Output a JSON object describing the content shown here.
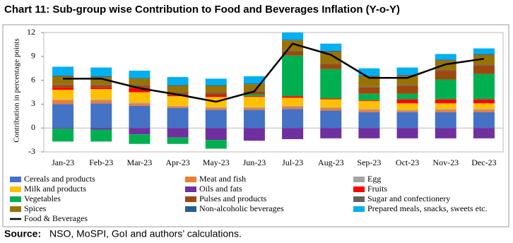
{
  "chart_data": {
    "type": "stacked-bar-line",
    "title": "Chart 11: Sub-group wise Contribution to Food and Beverages Inflation (Y-o-Y)",
    "y_label": "Contribution in percentage points",
    "categories": [
      "Jan-23",
      "Feb-23",
      "Mar-23",
      "Apr-23",
      "May-23",
      "Jun-23",
      "Jul-23",
      "Aug-23",
      "Sep-23",
      "Oct-23",
      "Nov-23",
      "Dec-23"
    ],
    "ylim": [
      -3,
      12
    ],
    "yticks": [
      -3,
      0,
      3,
      6,
      9,
      12
    ],
    "grid": false,
    "series": [
      {
        "name": "Cereals and products",
        "color": "#4472c4",
        "values": [
          3.0,
          3.1,
          2.8,
          2.5,
          2.3,
          2.3,
          2.4,
          2.2,
          2.0,
          2.0,
          2.0,
          2.0
        ]
      },
      {
        "name": "Meat and fish",
        "color": "#ed7d31",
        "values": [
          0.5,
          0.4,
          0.3,
          0.2,
          0.2,
          0.2,
          0.3,
          0.3,
          0.3,
          0.2,
          0.3,
          0.3
        ]
      },
      {
        "name": "Egg",
        "color": "#a5a5a5",
        "values": [
          0.1,
          0.1,
          0.1,
          0.1,
          0.1,
          0.1,
          0.1,
          0.1,
          0.1,
          0.1,
          0.1,
          0.1
        ]
      },
      {
        "name": "Milk and products",
        "color": "#ffc000",
        "values": [
          1.2,
          1.3,
          1.3,
          1.2,
          1.3,
          1.3,
          1.0,
          1.0,
          1.0,
          0.8,
          0.7,
          0.7
        ]
      },
      {
        "name": "Oils and fats",
        "color": "#7030a0",
        "values": [
          -0.1,
          -0.2,
          -0.8,
          -1.2,
          -1.5,
          -1.6,
          -1.4,
          -1.3,
          -1.3,
          -1.3,
          -1.3,
          -1.3
        ]
      },
      {
        "name": "Fruits",
        "color": "#ff0000",
        "values": [
          0.3,
          0.2,
          0.5,
          0.1,
          0.2,
          0.1,
          0.2,
          0.1,
          0.1,
          0.5,
          0.5,
          0.5
        ]
      },
      {
        "name": "Vegetables",
        "color": "#00b050",
        "values": [
          -1.6,
          -1.5,
          -1.2,
          -0.8,
          -1.1,
          0.2,
          5.1,
          3.7,
          0.8,
          0.7,
          2.5,
          3.2
        ]
      },
      {
        "name": "Pulses and products",
        "color": "#9e480e",
        "values": [
          0.3,
          0.3,
          0.3,
          0.3,
          0.3,
          0.4,
          0.5,
          0.6,
          0.8,
          1.0,
          1.1,
          1.1
        ]
      },
      {
        "name": "Sugar and confectionery",
        "color": "#636363",
        "values": [
          0.1,
          0.1,
          0.1,
          0.1,
          0.1,
          0.1,
          0.1,
          0.1,
          0.1,
          0.1,
          0.1,
          0.1
        ]
      },
      {
        "name": "Spices",
        "color": "#997300",
        "values": [
          1.0,
          0.9,
          0.8,
          0.8,
          0.8,
          0.8,
          1.3,
          1.5,
          1.3,
          1.2,
          1.2,
          1.2
        ]
      },
      {
        "name": "Non-alcoholic beverages",
        "color": "#255e91",
        "values": [
          0.1,
          0.1,
          0.1,
          0.1,
          0.1,
          0.1,
          0.1,
          0.1,
          0.1,
          0.1,
          0.1,
          0.1
        ]
      },
      {
        "name": "Prepared meals, snacks, sweets etc.",
        "color": "#00b0f0",
        "values": [
          1.1,
          1.1,
          0.9,
          1.0,
          0.8,
          0.9,
          0.9,
          0.9,
          0.9,
          0.9,
          0.7,
          0.7
        ]
      }
    ],
    "line": {
      "name": "Food & Beverages",
      "color": "#000000",
      "values": [
        6.2,
        6.2,
        5.0,
        4.2,
        3.3,
        4.6,
        10.6,
        9.2,
        6.3,
        6.3,
        8.0,
        8.7
      ]
    }
  },
  "source": {
    "label": "Source:",
    "text": "NSO, MoSPI, GoI and authors’ calculations."
  }
}
